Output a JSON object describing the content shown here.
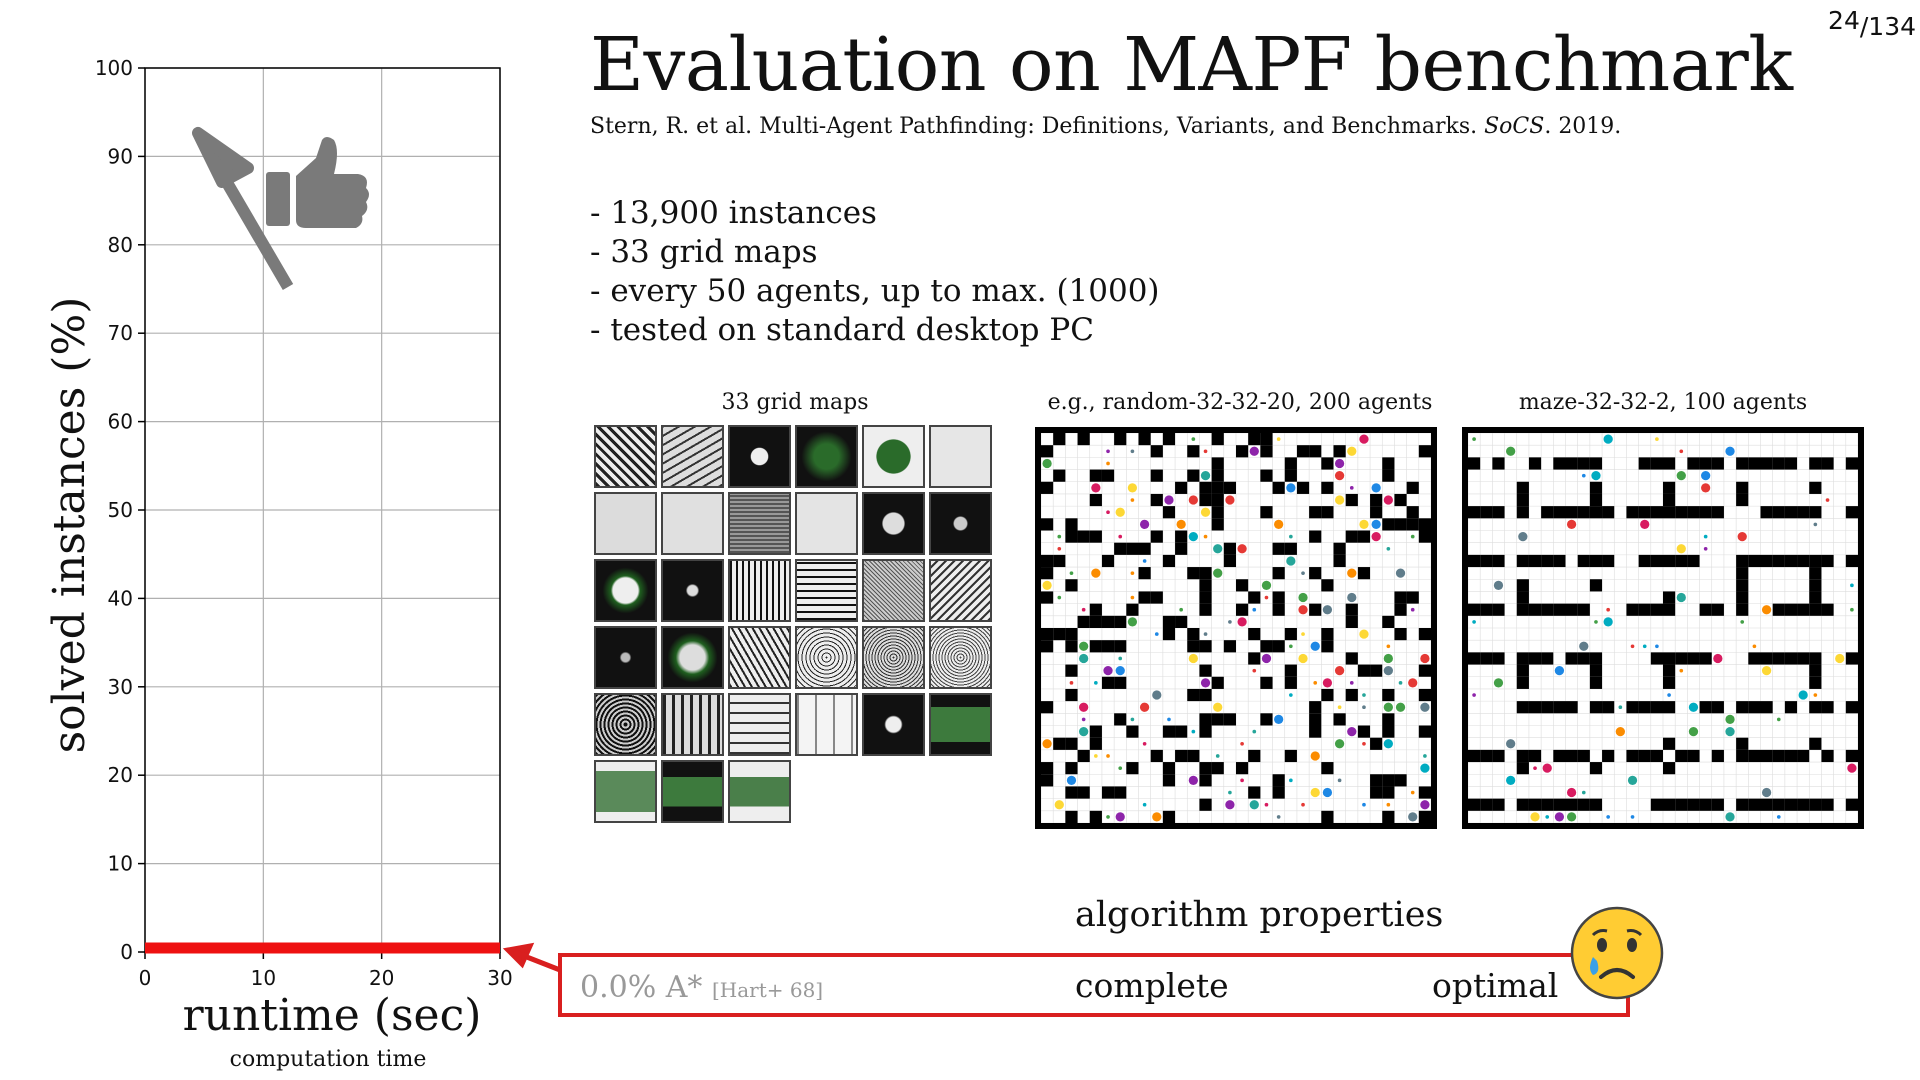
{
  "slide": {
    "title": "Evaluation on MAPF benchmark",
    "citation_authors": "Stern, R. et al. Multi-Agent Pathfinding: Definitions, Variants, and Benchmarks. ",
    "citation_venue": "SoCS",
    "citation_year": ". 2019.",
    "page_current": "24",
    "page_total": "/134"
  },
  "bullets": [
    "-  13,900 instances",
    "-   33 grid maps",
    "-   every 50 agents, up to max. (1000)",
    "-   tested on standard desktop PC"
  ],
  "figures": {
    "maps_caption": "33 grid maps",
    "random_caption": "e.g., random-32-32-20, 200 agents",
    "maze_caption": "maze-32-32-2, 100 agents"
  },
  "properties": {
    "title": "algorithm properties",
    "algorithm_score": "0.0% A*",
    "algorithm_ref": "[Hart+ 68]",
    "complete_label": "complete",
    "optimal_label": "optimal",
    "box_color": "#d91f1f",
    "emoji": "crying-face-icon"
  },
  "chart_data": {
    "type": "line",
    "title": "",
    "xlabel": "runtime (sec)",
    "xlabel_sub": "computation time",
    "ylabel": "solved instances (%)",
    "xlim": [
      0,
      30
    ],
    "ylim": [
      0,
      100
    ],
    "x_ticks": [
      0,
      10,
      20,
      30
    ],
    "y_ticks": [
      0,
      10,
      20,
      30,
      40,
      50,
      60,
      70,
      80,
      90,
      100
    ],
    "grid": true,
    "series": [
      {
        "x": [
          0,
          30
        ],
        "values": [
          0,
          0
        ],
        "color": "#ee1111"
      }
    ],
    "annotation_icons": [
      "arrow-up-left-icon",
      "thumbs-up-icon"
    ],
    "annotation_color": "#7a7a7a"
  }
}
